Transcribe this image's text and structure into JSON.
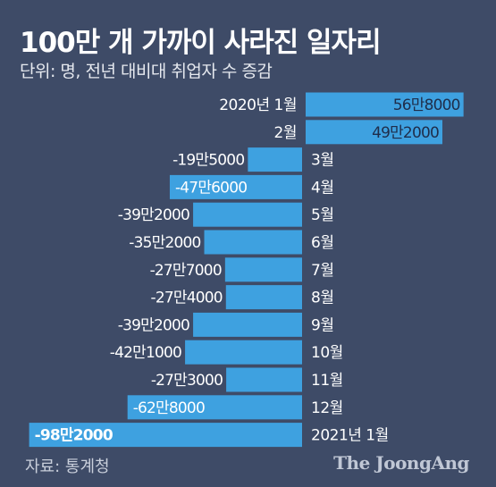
{
  "title": "100만 개 가까이 사라진 일자리",
  "subtitle": "단위: 명, 전년 대비대 취업자 수 증감",
  "source": "자료: 통계청",
  "brand": "The JoongAng",
  "colors": {
    "background": "#3e4b67",
    "bar": "#3ea1e0",
    "text": "#ffffff",
    "text_dark": "#1f2d4a"
  },
  "chart_data": {
    "type": "bar",
    "orientation": "horizontal",
    "categories": [
      "2020년 1월",
      "2월",
      "3월",
      "4월",
      "5월",
      "6월",
      "7월",
      "8월",
      "9월",
      "10월",
      "11월",
      "12월",
      "2021년 1월"
    ],
    "values": [
      568000,
      492000,
      -195000,
      -476000,
      -392000,
      -352000,
      -277000,
      -274000,
      -392000,
      -421000,
      -273000,
      -628000,
      -982000
    ],
    "value_labels": [
      "56만8000",
      "49만2000",
      "-19만5000",
      "-47만6000",
      "-39만2000",
      "-35만2000",
      "-27만7000",
      "-27만4000",
      "-39만2000",
      "-42만1000",
      "-27만3000",
      "-62만8000",
      "-98만2000"
    ],
    "title": "100만 개 가까이 사라진 일자리",
    "xlabel": "",
    "ylabel": "",
    "grid": false
  }
}
